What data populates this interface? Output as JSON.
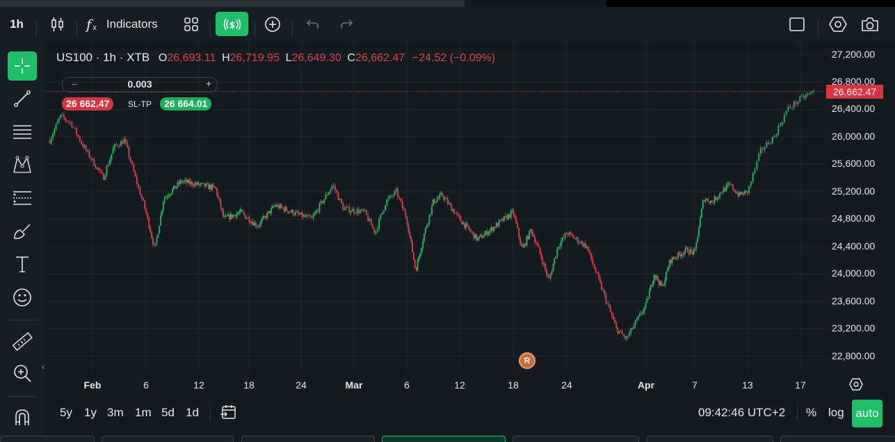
{
  "toolbar": {
    "interval": "1h",
    "indicators_label": "Indicators"
  },
  "legend": {
    "symbol": "US100 · 1h · XTB",
    "open_label": "O",
    "open": "26,693.11",
    "high_label": "H",
    "high": "26,719.95",
    "low_label": "L",
    "low": "26,649.30",
    "close_label": "C",
    "close": "26,662.47",
    "change": "−24.52 (−0.09%)"
  },
  "trade": {
    "quantity": "0.003",
    "minus": "−",
    "plus": "+",
    "sell_price": "26 662.47",
    "sltp_label": "SL-TP",
    "buy_price": "26 664.01"
  },
  "last_price_tag": "26,662.47",
  "price_axis": [
    "27,200.00",
    "26,800.00",
    "26,400.00",
    "26,000.00",
    "25,600.00",
    "25,200.00",
    "24,800.00",
    "24,400.00",
    "24,000.00",
    "23,600.00",
    "23,200.00",
    "22,800.00"
  ],
  "time_axis": [
    {
      "label": "Feb",
      "bold": true
    },
    {
      "label": "6",
      "bold": false
    },
    {
      "label": "12",
      "bold": false
    },
    {
      "label": "18",
      "bold": false
    },
    {
      "label": "24",
      "bold": false
    },
    {
      "label": "Mar",
      "bold": true
    },
    {
      "label": "6",
      "bold": false
    },
    {
      "label": "12",
      "bold": false
    },
    {
      "label": "18",
      "bold": false
    },
    {
      "label": "24",
      "bold": false
    },
    {
      "label": "Apr",
      "bold": true
    },
    {
      "label": "7",
      "bold": false
    },
    {
      "label": "13",
      "bold": false
    },
    {
      "label": "17",
      "bold": false
    }
  ],
  "event_marker": "R",
  "ranges": [
    "5y",
    "1y",
    "3m",
    "1m",
    "5d",
    "1d"
  ],
  "clock": "09:42:46 UTC+2",
  "scale_buttons": {
    "percent": "%",
    "log": "log",
    "auto": "auto"
  },
  "colors": {
    "up": "#1fbf6a",
    "down": "#e04050",
    "accent": "#1fbf6a",
    "background": "#131b20"
  },
  "chart_data": {
    "type": "candlestick",
    "symbol": "US100",
    "interval": "1h",
    "ylim": [
      22600,
      27400
    ],
    "x_range": [
      "Jan 28",
      "Apr 18"
    ],
    "grid": true,
    "anchors": [
      {
        "x": "Jan 28",
        "y": 25950
      },
      {
        "x": "Jan 29",
        "y": 26300
      },
      {
        "x": "Jan 30",
        "y": 26200
      },
      {
        "x": "Jan 31",
        "y": 25900
      },
      {
        "x": "Feb 2",
        "y": 25400
      },
      {
        "x": "Feb 3",
        "y": 25850
      },
      {
        "x": "Feb 4",
        "y": 25950
      },
      {
        "x": "Feb 5",
        "y": 25400
      },
      {
        "x": "Feb 6",
        "y": 24900
      },
      {
        "x": "Feb 7",
        "y": 24350
      },
      {
        "x": "Feb 8",
        "y": 25100
      },
      {
        "x": "Feb 10",
        "y": 25350
      },
      {
        "x": "Feb 12",
        "y": 25300
      },
      {
        "x": "Feb 14",
        "y": 25250
      },
      {
        "x": "Feb 15",
        "y": 24800
      },
      {
        "x": "Feb 17",
        "y": 24900
      },
      {
        "x": "Feb 19",
        "y": 24700
      },
      {
        "x": "Feb 21",
        "y": 25000
      },
      {
        "x": "Feb 23",
        "y": 24900
      },
      {
        "x": "Feb 25",
        "y": 24800
      },
      {
        "x": "Feb 27",
        "y": 25300
      },
      {
        "x": "Feb 28",
        "y": 24950
      },
      {
        "x": "Mar 2",
        "y": 24900
      },
      {
        "x": "Mar 3",
        "y": 24600
      },
      {
        "x": "Mar 4",
        "y": 25050
      },
      {
        "x": "Mar 5",
        "y": 25200
      },
      {
        "x": "Mar 6",
        "y": 24800
      },
      {
        "x": "Mar 7",
        "y": 24050
      },
      {
        "x": "Mar 8",
        "y": 24600
      },
      {
        "x": "Mar 9",
        "y": 25050
      },
      {
        "x": "Mar 10",
        "y": 25150
      },
      {
        "x": "Mar 12",
        "y": 24800
      },
      {
        "x": "Mar 14",
        "y": 24500
      },
      {
        "x": "Mar 16",
        "y": 24700
      },
      {
        "x": "Mar 18",
        "y": 24900
      },
      {
        "x": "Mar 19",
        "y": 24350
      },
      {
        "x": "Mar 20",
        "y": 24650
      },
      {
        "x": "Mar 21",
        "y": 24300
      },
      {
        "x": "Mar 22",
        "y": 23900
      },
      {
        "x": "Mar 23",
        "y": 24400
      },
      {
        "x": "Mar 24",
        "y": 24600
      },
      {
        "x": "Mar 26",
        "y": 24400
      },
      {
        "x": "Mar 27",
        "y": 24000
      },
      {
        "x": "Mar 28",
        "y": 23600
      },
      {
        "x": "Mar 29",
        "y": 23200
      },
      {
        "x": "Mar 30",
        "y": 23050
      },
      {
        "x": "Mar 31",
        "y": 23300
      },
      {
        "x": "Apr 1",
        "y": 23550
      },
      {
        "x": "Apr 2",
        "y": 24000
      },
      {
        "x": "Apr 3",
        "y": 23800
      },
      {
        "x": "Apr 4",
        "y": 24200
      },
      {
        "x": "Apr 6",
        "y": 24350
      },
      {
        "x": "Apr 7",
        "y": 24300
      },
      {
        "x": "Apr 8",
        "y": 25100
      },
      {
        "x": "Apr 9",
        "y": 25050
      },
      {
        "x": "Apr 10",
        "y": 25200
      },
      {
        "x": "Apr 11",
        "y": 25300
      },
      {
        "x": "Apr 12",
        "y": 25150
      },
      {
        "x": "Apr 13",
        "y": 25200
      },
      {
        "x": "Apr 14",
        "y": 25800
      },
      {
        "x": "Apr 15",
        "y": 26000
      },
      {
        "x": "Apr 16",
        "y": 26400
      },
      {
        "x": "Apr 17",
        "y": 26550
      },
      {
        "x": "Apr 18",
        "y": 26662
      }
    ],
    "last": 26662.47
  }
}
